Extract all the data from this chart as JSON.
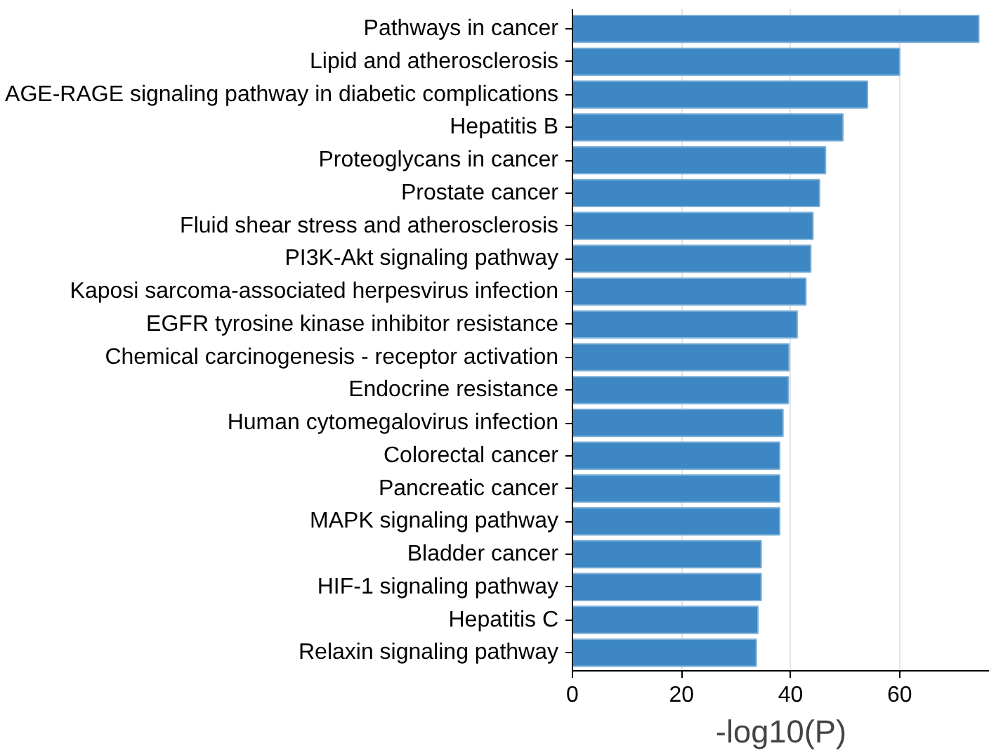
{
  "chart_data": {
    "type": "bar",
    "orientation": "horizontal",
    "xlabel": "-log10(P)",
    "categories": [
      "Pathways in cancer",
      "Lipid and atherosclerosis",
      "AGE-RAGE signaling pathway in diabetic complications",
      "Hepatitis B",
      "Proteoglycans in cancer",
      "Prostate cancer",
      "Fluid shear stress and atherosclerosis",
      "PI3K-Akt signaling pathway",
      "Kaposi sarcoma-associated herpesvirus infection",
      "EGFR tyrosine kinase inhibitor resistance",
      "Chemical carcinogenesis - receptor activation",
      "Endocrine resistance",
      "Human cytomegalovirus infection",
      "Colorectal cancer",
      "Pancreatic cancer",
      "MAPK signaling pathway",
      "Bladder cancer",
      "HIF-1 signaling pathway",
      "Hepatitis C",
      "Relaxin signaling pathway"
    ],
    "values": [
      74.5,
      60.0,
      54.1,
      49.6,
      46.4,
      45.3,
      44.1,
      43.7,
      42.8,
      41.2,
      39.7,
      39.6,
      38.6,
      38.0,
      38.0,
      38.0,
      34.6,
      34.6,
      34.0,
      33.7
    ],
    "color": "#3d88c4",
    "xlim": [
      0,
      76.5
    ],
    "xticks": [
      0,
      20,
      40,
      60
    ],
    "grid": "x"
  }
}
